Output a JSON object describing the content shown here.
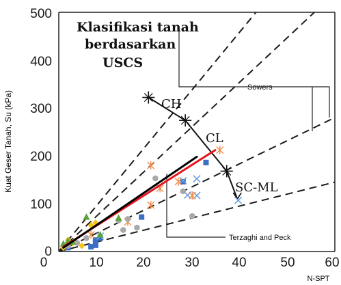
{
  "chart_data": {
    "type": "scatter",
    "xlabel": "N-SPT",
    "ylabel": "Kuat Geser Tanah, Su (kPa)",
    "xlim": [
      0,
      60
    ],
    "ylim": [
      0,
      500
    ],
    "x_ticks": [
      "0",
      "10",
      "20",
      "30",
      "40",
      "50",
      "60"
    ],
    "y_ticks": [
      "100",
      "200",
      "300",
      "400",
      "500"
    ],
    "title_lines": [
      "Klasifikasi tanah",
      "berdasarkan",
      "USCS"
    ],
    "grid": false,
    "reference_lines": [
      {
        "points": [
          [
            0,
            0
          ],
          [
            60,
            700
          ]
        ]
      },
      {
        "points": [
          [
            0,
            0
          ],
          [
            60,
            540
          ]
        ]
      },
      {
        "points": [
          [
            0,
            0
          ],
          [
            60,
            280
          ]
        ]
      },
      {
        "points": [
          [
            0,
            0
          ],
          [
            60,
            145
          ]
        ]
      }
    ],
    "classification_curve": {
      "points": [
        [
          19.5,
          322
        ],
        [
          27.5,
          274
        ],
        [
          36.5,
          168
        ],
        [
          38.8,
          110
        ]
      ],
      "labels": [
        {
          "text": "CH",
          "x": 24,
          "y": 318
        },
        {
          "text": "CL",
          "x": 33,
          "y": 233
        },
        {
          "text": "SC-ML",
          "x": 44,
          "y": 168
        }
      ]
    },
    "annotations": [
      {
        "text": "Sowers",
        "x": 46,
        "y": 382
      },
      {
        "text": "Terzaghi and Peck",
        "x": 48,
        "y": 57
      }
    ],
    "fit_lines": [
      {
        "color": "#e6141b",
        "points": [
          [
            1,
            10
          ],
          [
            34,
            212
          ]
        ]
      },
      {
        "color": "#000000",
        "points": [
          [
            1,
            8
          ],
          [
            30,
            198
          ]
        ]
      }
    ],
    "series": [
      {
        "marker": "square",
        "color": "#3b6fc4",
        "points": [
          [
            8,
            13
          ],
          [
            8,
            18
          ],
          [
            7,
            10
          ],
          [
            8,
            24
          ],
          [
            9,
            28
          ],
          [
            18,
            72
          ],
          [
            32,
            186
          ],
          [
            27,
            146
          ],
          [
            2,
            8
          ]
        ]
      },
      {
        "marker": "x",
        "color": "#6b9fe0",
        "points": [
          [
            9,
            32
          ],
          [
            28,
            118
          ],
          [
            30,
            117
          ],
          [
            30,
            152
          ],
          [
            27,
            148
          ],
          [
            39,
            107
          ]
        ]
      },
      {
        "marker": "star",
        "color": "#f08c4a",
        "points": [
          [
            20,
            180
          ],
          [
            20,
            97
          ],
          [
            22,
            132
          ],
          [
            26,
            146
          ],
          [
            29,
            117
          ],
          [
            15,
            62
          ],
          [
            7,
            35
          ],
          [
            35,
            212
          ]
        ]
      },
      {
        "marker": "circle",
        "color": "#a8a8a8",
        "points": [
          [
            21,
            153
          ],
          [
            27,
            126
          ],
          [
            29,
            74
          ],
          [
            17,
            50
          ],
          [
            14,
            45
          ],
          [
            15,
            68
          ],
          [
            13,
            65
          ],
          [
            6,
            28
          ],
          [
            4,
            18
          ],
          [
            2,
            12
          ]
        ]
      },
      {
        "marker": "diamond",
        "color": "#f5c216",
        "points": [
          [
            8,
            60
          ],
          [
            7,
            55
          ],
          [
            5,
            12
          ],
          [
            2,
            24
          ],
          [
            1,
            8
          ],
          [
            3,
            18
          ]
        ]
      },
      {
        "marker": "triangle",
        "color": "#5aa33a",
        "points": [
          [
            6,
            72
          ],
          [
            13,
            70
          ],
          [
            1,
            16
          ],
          [
            2,
            22
          ],
          [
            3,
            20
          ],
          [
            9,
            35
          ]
        ]
      }
    ]
  }
}
